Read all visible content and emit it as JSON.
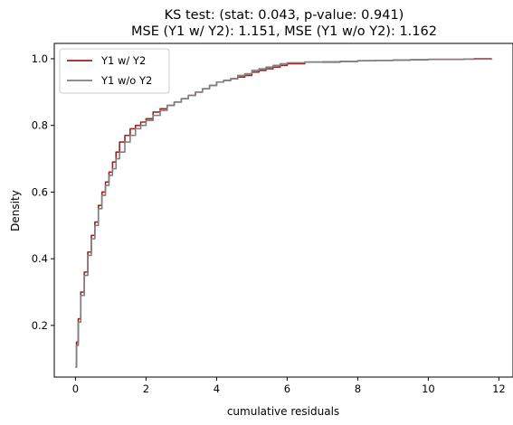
{
  "chart_data": {
    "type": "line",
    "title_line1": "KS test: (stat: 0.043, p-value: 0.941)",
    "title_line2": "MSE (Y1 w/ Y2): 1.151, MSE (Y1 w/o Y2): 1.162",
    "xlabel": "cumulative residuals",
    "ylabel": "Density",
    "xlim": [
      -0.6,
      12.4
    ],
    "ylim": [
      0.045,
      1.046
    ],
    "xticks": [
      0,
      2,
      4,
      6,
      8,
      10,
      12
    ],
    "yticks": [
      0.2,
      0.4,
      0.6,
      0.8,
      1.0
    ],
    "xtick_labels": [
      "0",
      "2",
      "4",
      "6",
      "8",
      "10",
      "12"
    ],
    "ytick_labels": [
      "0.2",
      "0.4",
      "0.6",
      "0.8",
      "1.0"
    ],
    "legend_position": "top-left",
    "series": [
      {
        "name": "Y1 w/ Y2",
        "color": "#a02020",
        "x": [
          0,
          0.03,
          0.08,
          0.15,
          0.25,
          0.35,
          0.45,
          0.55,
          0.65,
          0.75,
          0.85,
          0.95,
          1.05,
          1.15,
          1.25,
          1.4,
          1.55,
          1.7,
          1.85,
          2.0,
          2.2,
          2.4,
          2.6,
          2.8,
          3.0,
          3.2,
          3.4,
          3.6,
          3.8,
          4.0,
          4.2,
          4.4,
          4.6,
          4.8,
          5.0,
          5.2,
          5.4,
          5.6,
          5.8,
          6.0,
          6.5,
          7.0,
          7.5,
          8.0,
          8.5,
          9.0,
          9.5,
          10.0,
          10.5,
          11.0,
          11.3,
          11.8
        ],
        "values": [
          0.075,
          0.15,
          0.22,
          0.3,
          0.36,
          0.42,
          0.47,
          0.51,
          0.56,
          0.6,
          0.63,
          0.66,
          0.69,
          0.72,
          0.75,
          0.77,
          0.79,
          0.8,
          0.81,
          0.82,
          0.84,
          0.85,
          0.86,
          0.87,
          0.88,
          0.89,
          0.9,
          0.91,
          0.92,
          0.93,
          0.935,
          0.94,
          0.945,
          0.95,
          0.96,
          0.965,
          0.97,
          0.975,
          0.98,
          0.985,
          0.99,
          0.99,
          0.992,
          0.994,
          0.995,
          0.996,
          0.997,
          0.998,
          0.998,
          0.999,
          1.0,
          1.0
        ]
      },
      {
        "name": "Y1 w/o Y2",
        "color": "#808080",
        "x": [
          0,
          0.03,
          0.08,
          0.15,
          0.25,
          0.35,
          0.45,
          0.55,
          0.65,
          0.75,
          0.85,
          0.95,
          1.05,
          1.15,
          1.25,
          1.4,
          1.55,
          1.7,
          1.85,
          2.0,
          2.2,
          2.4,
          2.6,
          2.8,
          3.0,
          3.2,
          3.4,
          3.6,
          3.8,
          4.0,
          4.2,
          4.4,
          4.6,
          4.8,
          5.0,
          5.2,
          5.4,
          5.6,
          5.8,
          6.0,
          6.5,
          7.0,
          7.5,
          8.0,
          8.5,
          9.0,
          9.5,
          10.0,
          10.5,
          11.0,
          11.3,
          11.8
        ],
        "values": [
          0.075,
          0.14,
          0.21,
          0.29,
          0.35,
          0.41,
          0.46,
          0.5,
          0.55,
          0.59,
          0.62,
          0.65,
          0.67,
          0.7,
          0.72,
          0.75,
          0.77,
          0.79,
          0.8,
          0.815,
          0.83,
          0.845,
          0.86,
          0.87,
          0.88,
          0.89,
          0.9,
          0.91,
          0.92,
          0.93,
          0.935,
          0.94,
          0.95,
          0.955,
          0.965,
          0.97,
          0.975,
          0.98,
          0.985,
          0.988,
          0.99,
          0.991,
          0.992,
          0.994,
          0.995,
          0.996,
          0.997,
          0.998,
          0.998,
          0.999,
          0.999,
          1.0
        ]
      }
    ]
  }
}
